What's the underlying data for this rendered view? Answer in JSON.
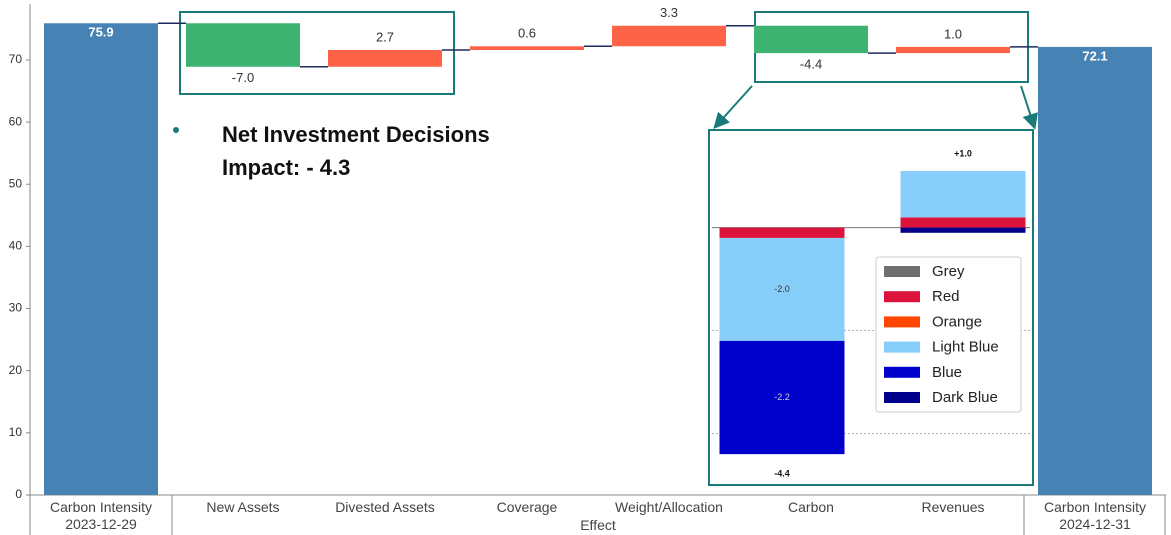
{
  "chart_data": [
    {
      "type": "waterfall",
      "categories": [
        "Carbon Intensity\n2023-12-29",
        "New Assets",
        "Divested Assets",
        "Coverage",
        "Weight/Allocation",
        "Carbon",
        "Revenues",
        "Carbon Intensity\n2024-12-31"
      ],
      "values": [
        75.9,
        -7.0,
        2.7,
        0.6,
        3.3,
        -4.4,
        1.0,
        72.1
      ],
      "value_labels": [
        "75.9",
        "-7.0",
        "2.7",
        "0.6",
        "3.3",
        "-4.4",
        "1.0",
        "72.1"
      ],
      "is_total": [
        true,
        false,
        false,
        false,
        false,
        false,
        false,
        true
      ],
      "colors": {
        "total": "#4682b4",
        "increase": "#ff6347",
        "decrease": "#3cb371"
      },
      "xlabel": "Effect",
      "ylim": [
        0,
        79
      ],
      "yticks": [
        0,
        10,
        20,
        30,
        40,
        50,
        60,
        70
      ],
      "annotation": "Net Investment Decisions\nImpact:  - 4.3"
    },
    {
      "type": "stacked_bar",
      "series": [
        {
          "name": "Grey",
          "color": "#6e6e6e",
          "values": [
            0,
            0
          ]
        },
        {
          "name": "Red",
          "color": "#dc143c",
          "values": [
            -0.2,
            0.2
          ]
        },
        {
          "name": "Orange",
          "color": "#ff4500",
          "values": [
            0,
            0
          ]
        },
        {
          "name": "Light Blue",
          "color": "#87cefa",
          "values": [
            -2.0,
            0.9
          ],
          "value_labels": [
            "-2.0",
            null
          ]
        },
        {
          "name": "Blue",
          "color": "#0000cd",
          "values": [
            -2.2,
            0
          ],
          "value_labels": [
            "-2.2",
            null
          ]
        },
        {
          "name": "Dark Blue",
          "color": "#00008b",
          "values": [
            0,
            -0.1
          ]
        }
      ],
      "totals": [
        -4.4,
        1.0
      ],
      "total_labels": [
        "-4.4",
        "+1.0"
      ],
      "ylim": [
        -5,
        1.8
      ],
      "gridlines": [
        -4,
        -2
      ],
      "legend": "center right"
    }
  ]
}
